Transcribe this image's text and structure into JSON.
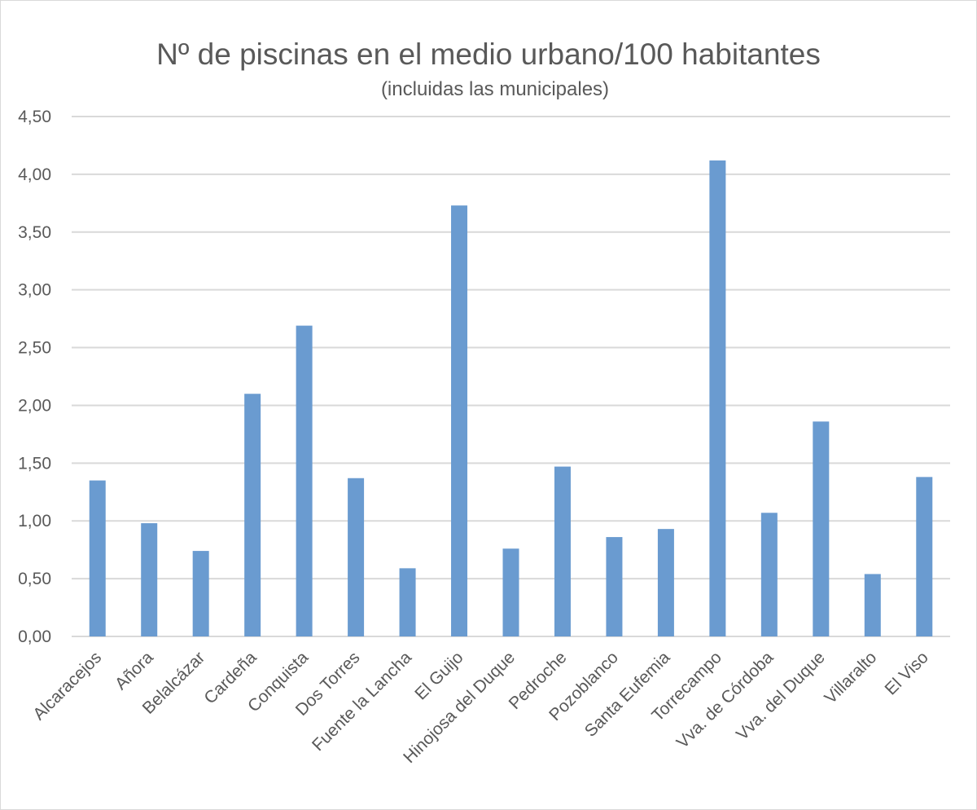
{
  "chart_data": {
    "type": "bar",
    "title": "Nº de piscinas en el medio urbano/100 habitantes",
    "subtitle": "(incluidas las municipales)",
    "categories": [
      "Alcaracejos",
      "Añora",
      "Belalcázar",
      "Cardeña",
      "Conquista",
      "Dos Torres",
      "Fuente la Lancha",
      "El Guijo",
      "Hinojosa del Duque",
      "Pedroche",
      "Pozoblanco",
      "Santa Eufemia",
      "Torrecampo",
      "Vva. de Córdoba",
      "Vva. del Duque",
      "Villaralto",
      "El Viso"
    ],
    "values": [
      1.35,
      0.98,
      0.74,
      2.1,
      2.69,
      1.37,
      0.59,
      3.73,
      0.76,
      1.47,
      0.86,
      0.93,
      4.12,
      1.07,
      1.86,
      0.54,
      1.38
    ],
    "ylim": [
      0,
      4.5
    ],
    "yticks": [
      "0,00",
      "0,50",
      "1,00",
      "1,50",
      "2,00",
      "2,50",
      "3,00",
      "3,50",
      "4,00",
      "4,50"
    ],
    "ytick_values": [
      0,
      0.5,
      1.0,
      1.5,
      2.0,
      2.5,
      3.0,
      3.5,
      4.0,
      4.5
    ],
    "grid": true,
    "legend": "none",
    "colors": {
      "bar": "#6a9bd0",
      "grid": "#d9d9d9",
      "text": "#595959"
    }
  }
}
